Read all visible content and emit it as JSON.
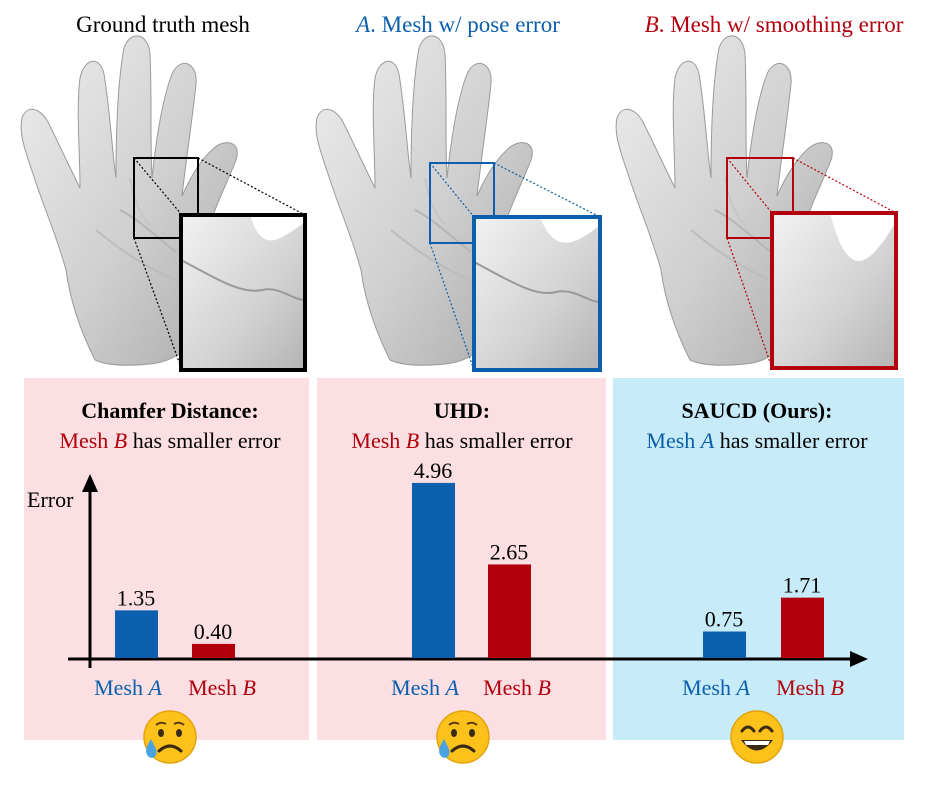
{
  "header": {
    "ground_truth": "Ground truth mesh",
    "mesh_a_letter": "A",
    "mesh_a_rest": ". Mesh w/ pose error",
    "mesh_b_letter": "B",
    "mesh_b_rest": ". Mesh w/ smoothing error"
  },
  "colors": {
    "blue": "#0b5fad",
    "red": "#b3000d",
    "panel_pink": "#fbdfe3",
    "panel_blue": "#c7ebf8",
    "hand_fill": "#d9d9d9"
  },
  "legend": {
    "mesh": "Mesh",
    "a": "A",
    "b": "B"
  },
  "y_axis_label": "Error",
  "panels": [
    {
      "metric": "Chamfer Distance:",
      "verdict_mesh": "Mesh",
      "verdict_letter": "B",
      "verdict_text": "has smaller error",
      "emoji": "sad-tear",
      "bars": {
        "A": 1.35,
        "B": 0.4
      },
      "labels": {
        "A": "1.35",
        "B": "0.40"
      }
    },
    {
      "metric": "UHD:",
      "verdict_mesh": "Mesh",
      "verdict_letter": "B",
      "verdict_text": "has smaller error",
      "emoji": "sad-tear",
      "bars": {
        "A": 4.96,
        "B": 2.65
      },
      "labels": {
        "A": "4.96",
        "B": "2.65"
      }
    },
    {
      "metric": "SAUCD (Ours):",
      "verdict_mesh": "Mesh",
      "verdict_letter": "A",
      "verdict_text": "has smaller error",
      "emoji": "grin",
      "bars": {
        "A": 0.75,
        "B": 1.71
      },
      "labels": {
        "A": "0.75",
        "B": "1.71"
      }
    }
  ],
  "chart_data": {
    "type": "bar",
    "title": "",
    "ylabel": "Error",
    "xlabel": "",
    "categories": [
      "Mesh A",
      "Mesh B"
    ],
    "groups": [
      "Chamfer Distance",
      "UHD",
      "SAUCD (Ours)"
    ],
    "series": [
      {
        "name": "Chamfer Distance",
        "values": [
          1.35,
          0.4
        ]
      },
      {
        "name": "UHD",
        "values": [
          4.96,
          2.65
        ]
      },
      {
        "name": "SAUCD (Ours)",
        "values": [
          0.75,
          1.71
        ]
      }
    ],
    "grid": false
  }
}
